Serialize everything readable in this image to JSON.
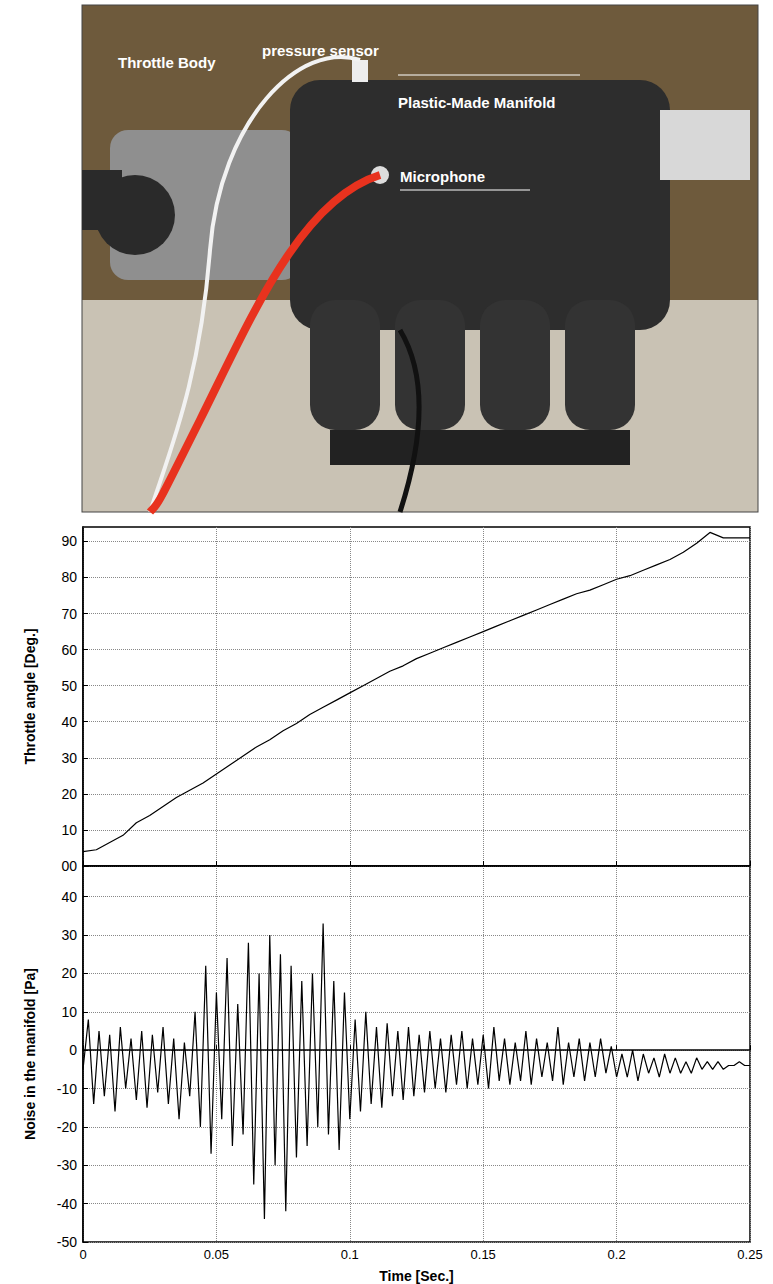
{
  "photo_labels": [
    "Throttle Body",
    "pressure sensor",
    "Plastic-Made Manifold",
    "Microphone"
  ],
  "chart_data": [
    {
      "type": "line",
      "ylabel": "Throttle angle [Deg.]",
      "grid": true,
      "tick_labels": "y",
      "xlim": [
        0,
        0.25
      ],
      "xticks": [
        0,
        0.05,
        0.1,
        0.15,
        0.2,
        0.25
      ],
      "ylim": [
        0,
        94
      ],
      "yticks": [
        {
          "value": 0,
          "label": "00"
        },
        10,
        20,
        30,
        40,
        50,
        60,
        70,
        80,
        90
      ],
      "series": [
        {
          "color": "#000000",
          "line_style": "solid",
          "x": [
            0,
            0.005,
            0.01,
            0.015,
            0.02,
            0.025,
            0.03,
            0.035,
            0.04,
            0.045,
            0.05,
            0.055,
            0.06,
            0.065,
            0.07,
            0.075,
            0.08,
            0.085,
            0.09,
            0.095,
            0.1,
            0.105,
            0.11,
            0.115,
            0.12,
            0.125,
            0.13,
            0.135,
            0.14,
            0.145,
            0.15,
            0.155,
            0.16,
            0.165,
            0.17,
            0.175,
            0.18,
            0.185,
            0.19,
            0.195,
            0.2,
            0.205,
            0.21,
            0.215,
            0.22,
            0.225,
            0.23,
            0.235,
            0.24,
            0.245,
            0.25
          ],
          "values": [
            4,
            4.5,
            6.5,
            8.5,
            12,
            14,
            16.5,
            19,
            21,
            23,
            25.5,
            28,
            30.5,
            33,
            35,
            37.5,
            39.5,
            42,
            44,
            46,
            48,
            50,
            52,
            54,
            55.5,
            57.5,
            59,
            60.5,
            62,
            63.5,
            65,
            66.5,
            68,
            69.5,
            71,
            72.5,
            74,
            75.5,
            76.5,
            78,
            79.5,
            80.5,
            82,
            83.5,
            85,
            87,
            89.5,
            92.5,
            91,
            91,
            91
          ]
        }
      ]
    },
    {
      "type": "line",
      "xlabel": "Time [Sec.]",
      "ylabel": "Noise in the manifold [Pa]",
      "grid": true,
      "tick_labels": true,
      "xlim": [
        0,
        0.25
      ],
      "xticks": [
        0,
        0.05,
        0.1,
        0.15,
        0.2,
        0.25
      ],
      "ylim": [
        -50,
        48
      ],
      "yticks": [
        -50,
        -40,
        -30,
        -20,
        -10,
        0,
        10,
        20,
        30,
        40
      ],
      "series": [
        {
          "color": "#000000",
          "line_style": "solid",
          "x": [
            0,
            0.002,
            0.004,
            0.006,
            0.008,
            0.01,
            0.012,
            0.014,
            0.016,
            0.018,
            0.02,
            0.022,
            0.024,
            0.026,
            0.028,
            0.03,
            0.032,
            0.034,
            0.036,
            0.038,
            0.04,
            0.042,
            0.044,
            0.046,
            0.048,
            0.05,
            0.052,
            0.054,
            0.056,
            0.058,
            0.06,
            0.062,
            0.064,
            0.066,
            0.068,
            0.07,
            0.072,
            0.074,
            0.076,
            0.078,
            0.08,
            0.082,
            0.084,
            0.086,
            0.088,
            0.09,
            0.092,
            0.094,
            0.096,
            0.098,
            0.1,
            0.102,
            0.104,
            0.106,
            0.108,
            0.11,
            0.112,
            0.114,
            0.116,
            0.118,
            0.12,
            0.122,
            0.124,
            0.126,
            0.128,
            0.13,
            0.132,
            0.134,
            0.136,
            0.138,
            0.14,
            0.142,
            0.144,
            0.146,
            0.148,
            0.15,
            0.152,
            0.154,
            0.156,
            0.158,
            0.16,
            0.162,
            0.164,
            0.166,
            0.168,
            0.17,
            0.172,
            0.174,
            0.176,
            0.178,
            0.18,
            0.182,
            0.184,
            0.186,
            0.188,
            0.19,
            0.192,
            0.194,
            0.196,
            0.198,
            0.2,
            0.202,
            0.204,
            0.206,
            0.208,
            0.21,
            0.212,
            0.214,
            0.216,
            0.218,
            0.22,
            0.222,
            0.224,
            0.226,
            0.228,
            0.23,
            0.232,
            0.234,
            0.236,
            0.238,
            0.24,
            0.242,
            0.244,
            0.246,
            0.248,
            0.25
          ],
          "values": [
            -5,
            8,
            -14,
            5,
            -12,
            4,
            -16,
            6,
            -10,
            3,
            -13,
            5,
            -15,
            4,
            -11,
            6,
            -14,
            3,
            -18,
            2,
            -12,
            10,
            -20,
            22,
            -27,
            15,
            -18,
            24,
            -25,
            12,
            -22,
            28,
            -35,
            20,
            -44,
            30,
            -30,
            25,
            -42,
            22,
            -28,
            18,
            -25,
            20,
            -20,
            33,
            -22,
            18,
            -26,
            15,
            -18,
            8,
            -16,
            10,
            -14,
            6,
            -15,
            7,
            -12,
            5,
            -13,
            6,
            -12,
            4,
            -11,
            5,
            -10,
            3,
            -11,
            4,
            -9,
            5,
            -10,
            3,
            -9,
            4,
            -10,
            6,
            -8,
            3,
            -9,
            2,
            -8,
            5,
            -9,
            3,
            -7,
            2,
            -8,
            6,
            -9,
            2,
            -7,
            3,
            -8,
            2,
            -7,
            3,
            -6,
            1,
            -7,
            -1,
            -7,
            0,
            -8,
            -1,
            -6,
            -2,
            -7,
            -1,
            -6,
            -2,
            -6,
            -3,
            -6,
            -2,
            -5,
            -3,
            -5,
            -3,
            -5,
            -4,
            -4,
            -3,
            -4,
            -4
          ]
        }
      ]
    }
  ]
}
